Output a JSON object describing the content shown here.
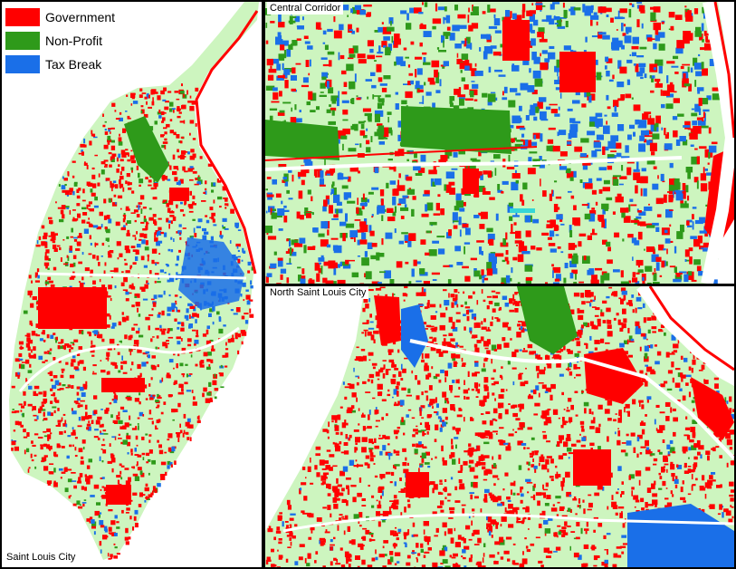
{
  "legend": {
    "items": [
      {
        "label": "Government",
        "color": "#ff0000"
      },
      {
        "label": "Non-Profit",
        "color": "#2e9a1a"
      },
      {
        "label": "Tax Break",
        "color": "#1a6fe8"
      }
    ]
  },
  "map_colors": {
    "land": "#cdf5bf",
    "street": "#ffffff",
    "water_river": "#ffffff",
    "border": "#000000",
    "inlay_water": "#36d6d6"
  },
  "panels": {
    "city": {
      "title": "Saint Louis City"
    },
    "central": {
      "title": "Central Corridor"
    },
    "north": {
      "title": "North Saint Louis City"
    }
  }
}
